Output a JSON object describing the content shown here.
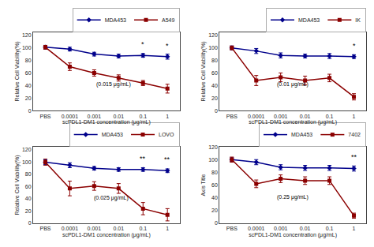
{
  "chart_data": [
    {
      "type": "line",
      "xlabel": "scPDL1-DM1 concentration (μg/mL)",
      "ylabel": "Relative Cell Viability(%)",
      "categories": [
        "PBS",
        "0.0001",
        "0.001",
        "0.01",
        "0.1",
        "1"
      ],
      "series": [
        {
          "name": "MDA453",
          "color": "#00008B",
          "marker": "diamond",
          "values": [
            101,
            98,
            90,
            87,
            88,
            86
          ],
          "errors": [
            3,
            3,
            3,
            3,
            3,
            4
          ]
        },
        {
          "name": "A549",
          "color": "#8B0000",
          "marker": "square",
          "values": [
            101,
            70,
            60,
            52,
            44,
            35
          ],
          "errors": [
            3,
            6,
            5,
            5,
            4,
            7
          ]
        }
      ],
      "annotations": [
        {
          "text": "(0.015 μg/mL)",
          "x": 2.8,
          "y": 34
        },
        {
          "text": "*",
          "x": 4,
          "y": 97
        },
        {
          "text": "*",
          "x": 5,
          "y": 95
        }
      ],
      "ylim": [
        0,
        125
      ],
      "yticks": [
        0,
        20,
        40,
        60,
        80,
        100,
        120
      ],
      "grid": false,
      "legend": "upper right"
    },
    {
      "type": "line",
      "xlabel": "scPDL1-DM1 concentration (μg/mL)",
      "ylabel": "Relative Cell Viability(%)",
      "categories": [
        "PBS",
        "0.0001",
        "0.001",
        "0.01",
        "0.1",
        "1"
      ],
      "series": [
        {
          "name": "MDA453",
          "color": "#00008B",
          "marker": "diamond",
          "values": [
            100,
            95,
            88,
            87,
            87,
            86
          ],
          "errors": [
            3,
            4,
            4,
            3,
            4,
            3
          ]
        },
        {
          "name": "IK",
          "color": "#8B0000",
          "marker": "square",
          "values": [
            100,
            48,
            53,
            48,
            52,
            22
          ],
          "errors": [
            3,
            8,
            7,
            7,
            6,
            5
          ]
        }
      ],
      "annotations": [
        {
          "text": "(0.01 μg/mL)",
          "x": 2.5,
          "y": 34
        },
        {
          "text": "*",
          "x": 5,
          "y": 95
        }
      ],
      "ylim": [
        0,
        125
      ],
      "yticks": [
        0,
        20,
        40,
        60,
        80,
        100,
        120
      ],
      "grid": false,
      "legend": "upper right"
    },
    {
      "type": "line",
      "xlabel": "scPDL1-DM1 concentration (μg/mL)",
      "ylabel": "Relative Cell Viability(%)",
      "categories": [
        "PBS",
        "0.0001",
        "0.001",
        "0.01",
        "0.1",
        "1"
      ],
      "series": [
        {
          "name": "MDA453",
          "color": "#00008B",
          "marker": "diamond",
          "values": [
            100,
            95,
            90,
            88,
            88,
            86
          ],
          "errors": [
            4,
            4,
            3,
            3,
            3,
            3
          ]
        },
        {
          "name": "LOVO",
          "color": "#8B0000",
          "marker": "square",
          "values": [
            100,
            57,
            61,
            57,
            24,
            14
          ],
          "errors": [
            5,
            12,
            7,
            8,
            10,
            10
          ]
        }
      ],
      "annotations": [
        {
          "text": "(0.025 μg/mL)",
          "x": 2.7,
          "y": 34
        },
        {
          "text": "**",
          "x": 4,
          "y": 97
        },
        {
          "text": "**",
          "x": 5,
          "y": 95
        }
      ],
      "ylim": [
        0,
        125
      ],
      "yticks": [
        0,
        20,
        40,
        60,
        80,
        100,
        120
      ],
      "grid": false,
      "legend": "upper right"
    },
    {
      "type": "line",
      "xlabel": "scPDL1-DM1 concentration (μg/mL)",
      "ylabel": "Axis Title",
      "categories": [
        "PBS",
        "0.0001",
        "0.001",
        "0.01",
        "0.1",
        "1"
      ],
      "series": [
        {
          "name": "MDA453",
          "color": "#00008B",
          "marker": "diamond",
          "values": [
            100,
            96,
            88,
            87,
            87,
            86
          ],
          "errors": [
            3,
            4,
            4,
            4,
            4,
            4
          ]
        },
        {
          "name": "7402",
          "color": "#8B0000",
          "marker": "square",
          "values": [
            100,
            62,
            70,
            67,
            67,
            12
          ],
          "errors": [
            4,
            6,
            6,
            6,
            6,
            4
          ]
        }
      ],
      "annotations": [
        {
          "text": "(0.25 μg/mL)",
          "x": 2.5,
          "y": 34
        },
        {
          "text": "**",
          "x": 5,
          "y": 95
        }
      ],
      "ylim": [
        0,
        120
      ],
      "yticks": [
        0,
        20,
        40,
        60,
        80,
        100,
        120
      ],
      "grid": false,
      "legend": "upper right"
    }
  ]
}
